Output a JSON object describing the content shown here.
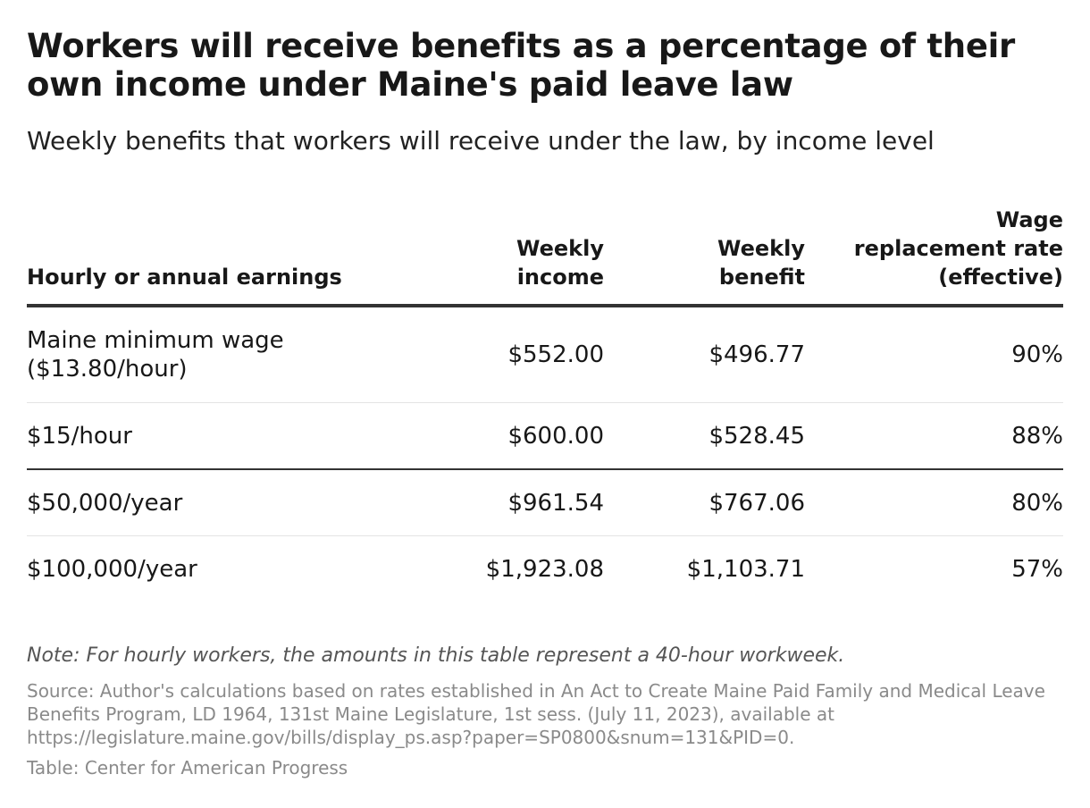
{
  "chart_data": {
    "type": "table",
    "title": "Workers will receive benefits as a percentage of their own income under Maine's paid leave law",
    "subtitle": "Weekly benefits that workers will receive under the law, by income level",
    "columns": [
      [
        "Hourly or annual earnings"
      ],
      [
        "Weekly",
        "income"
      ],
      [
        "Weekly",
        "benefit"
      ],
      [
        "Wage",
        "replacement rate",
        "(effective)"
      ]
    ],
    "rows": [
      {
        "earnings": [
          "Maine minimum wage",
          "($13.80/hour)"
        ],
        "weekly_income": "$552.00",
        "weekly_benefit": "$496.77",
        "replacement_rate": "90%"
      },
      {
        "earnings": [
          "$15/hour"
        ],
        "weekly_income": "$600.00",
        "weekly_benefit": "$528.45",
        "replacement_rate": "88%"
      },
      {
        "earnings": [
          "$50,000/year"
        ],
        "weekly_income": "$961.54",
        "weekly_benefit": "$767.06",
        "replacement_rate": "80%"
      },
      {
        "earnings": [
          "$100,000/year"
        ],
        "weekly_income": "$1,923.08",
        "weekly_benefit": "$1,103.71",
        "replacement_rate": "57%"
      }
    ],
    "note": "Note: For hourly workers, the amounts in this table represent a 40-hour workweek.",
    "source": "Source: Author's calculations based on rates established in An Act to Create Maine Paid Family and Medical Leave Benefits Program, LD 1964, 131st Maine Legislature, 1st sess. (July 11, 2023), available at https://legislature.maine.gov/bills/display_ps.asp?paper=SP0800&snum=131&PID=0.",
    "credit": "Table: Center for American Progress"
  },
  "colors": {
    "text": "#181818",
    "muted": "#8a8a8a",
    "note": "#555555",
    "rule": "#333333",
    "divider": "#e4e4e4"
  }
}
